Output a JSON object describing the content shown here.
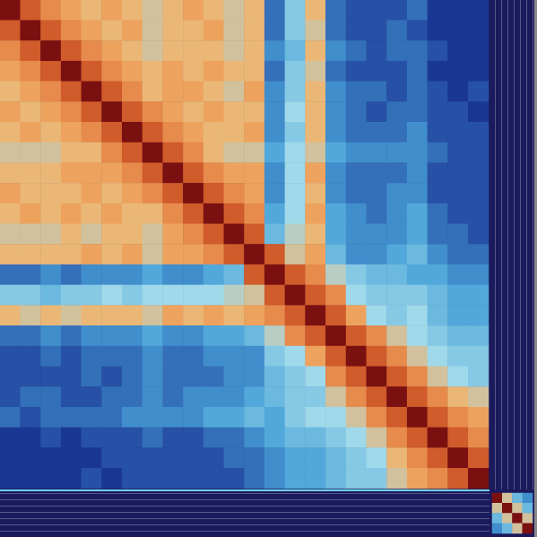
{
  "chart_data": [
    {
      "type": "heatmap",
      "tick_labels": false,
      "color_range": [
        0,
        10
      ],
      "colors": [
        "#0d0d5e",
        "#1d3c9a",
        "#4aa3d8",
        "#9fd9ea",
        "#f2b36a",
        "#d9632e",
        "#7a1010"
      ],
      "matrix": [
        [
          10,
          8.5,
          7.5,
          7,
          6.5,
          7,
          6.5,
          6,
          6.5,
          7,
          6.5,
          6,
          6.5,
          2.5,
          4.5,
          6.5,
          2.5,
          2,
          2,
          2,
          2.5,
          1.5,
          1.5,
          1.5
        ],
        [
          8.5,
          10,
          8.5,
          7.5,
          7,
          6.5,
          7,
          6,
          6.5,
          6.5,
          7,
          6,
          6.5,
          2.5,
          4.5,
          6,
          2.5,
          2,
          2,
          2.5,
          2,
          1.5,
          1.5,
          1.5
        ],
        [
          7.5,
          8.5,
          10,
          8.5,
          7.5,
          7,
          6.5,
          6,
          6.5,
          6.5,
          6.5,
          6,
          6.5,
          3,
          4,
          6.5,
          3,
          2.5,
          2,
          2.5,
          2.5,
          2,
          1.5,
          1.5
        ],
        [
          7,
          7.5,
          8.5,
          10,
          8.5,
          7.5,
          7,
          6.5,
          7,
          6.5,
          7,
          6.5,
          6.5,
          2.5,
          4.5,
          6,
          2.5,
          2,
          2,
          2,
          2.5,
          1.5,
          1.5,
          1.5
        ],
        [
          6.5,
          7,
          7.5,
          8.5,
          10,
          8.5,
          7.5,
          6.5,
          7,
          7,
          6.5,
          6,
          7,
          3,
          4.5,
          6.5,
          3,
          2.5,
          2.5,
          2,
          2.5,
          2,
          1.5,
          2
        ],
        [
          7,
          6.5,
          7,
          7.5,
          8.5,
          10,
          8.5,
          7.5,
          7,
          6.5,
          7,
          6.5,
          6.5,
          3,
          5,
          6.5,
          3,
          2.5,
          2,
          2.5,
          2.5,
          2,
          2,
          1.5
        ],
        [
          6.5,
          7,
          6.5,
          7,
          7.5,
          8.5,
          10,
          8.5,
          7.5,
          7,
          6.5,
          6.5,
          7,
          3,
          4.5,
          6.5,
          3,
          2.5,
          2.5,
          2.5,
          3,
          2,
          2,
          2
        ],
        [
          6,
          6,
          6,
          6.5,
          6.5,
          7.5,
          8.5,
          10,
          8.5,
          7.5,
          6.5,
          6,
          6,
          3.5,
          5,
          6,
          3.5,
          3,
          3,
          3,
          3,
          2.5,
          2,
          2
        ],
        [
          6.5,
          6.5,
          6.5,
          7,
          7,
          7,
          7.5,
          8.5,
          10,
          8.5,
          7.5,
          7,
          7,
          3,
          5,
          7,
          3,
          2.5,
          2.5,
          2.5,
          3,
          2,
          2,
          2
        ],
        [
          7,
          6.5,
          6.5,
          6.5,
          7,
          6.5,
          7,
          7.5,
          8.5,
          10,
          8.5,
          7.5,
          7,
          3,
          5,
          6.5,
          3,
          2.5,
          2.5,
          3,
          3,
          2,
          2,
          2
        ],
        [
          6.5,
          7,
          6.5,
          7,
          6.5,
          7,
          6.5,
          6.5,
          7.5,
          8.5,
          10,
          8.5,
          7.5,
          3.5,
          5,
          7,
          3.5,
          3,
          2.5,
          3,
          3.5,
          2.5,
          2,
          2
        ],
        [
          6,
          6,
          6,
          6.5,
          6,
          6.5,
          6.5,
          6,
          7,
          7.5,
          8.5,
          10,
          8.5,
          4,
          5.5,
          6.5,
          3.5,
          3,
          3,
          3,
          3.5,
          2.5,
          2.5,
          2
        ],
        [
          6.5,
          6.5,
          6.5,
          6.5,
          7,
          6.5,
          7,
          6,
          7,
          7,
          7.5,
          8.5,
          10,
          8.5,
          6,
          7,
          4,
          3,
          3,
          3.5,
          4,
          3,
          2.5,
          2.5
        ],
        [
          2.5,
          2.5,
          3,
          2.5,
          3,
          3,
          3,
          3.5,
          3,
          3,
          3.5,
          4,
          8.5,
          10,
          8.5,
          7.5,
          5.5,
          4.5,
          4,
          4,
          3.5,
          3.5,
          3,
          3
        ],
        [
          4.5,
          4.5,
          4,
          4.5,
          4.5,
          5,
          4.5,
          5,
          5,
          5,
          5,
          5.5,
          6,
          8.5,
          10,
          8.5,
          7.5,
          5,
          4.5,
          4.5,
          4.5,
          4,
          3.5,
          3.5
        ],
        [
          6.5,
          6,
          6.5,
          6,
          6.5,
          6.5,
          6.5,
          6,
          7,
          6.5,
          7,
          6.5,
          7,
          7.5,
          8.5,
          10,
          8.5,
          7,
          5,
          4.5,
          5,
          4,
          3.5,
          3.5
        ],
        [
          2.5,
          2.5,
          3,
          2.5,
          3,
          3,
          3,
          3.5,
          3,
          3,
          3.5,
          3.5,
          4,
          5.5,
          7.5,
          8.5,
          10,
          8.5,
          7.5,
          6,
          5,
          4.5,
          4,
          4
        ],
        [
          2,
          2,
          2.5,
          2,
          2.5,
          2.5,
          2.5,
          3,
          2.5,
          2.5,
          3,
          3,
          3,
          4.5,
          5,
          7,
          8.5,
          10,
          8.5,
          7.5,
          6,
          5,
          4.5,
          4.5
        ],
        [
          2,
          2,
          2,
          2,
          2.5,
          2,
          2.5,
          3,
          2.5,
          2.5,
          2.5,
          3,
          3,
          4,
          4.5,
          5,
          7.5,
          8.5,
          10,
          8.5,
          7.5,
          6,
          5,
          4.5
        ],
        [
          2,
          2.5,
          2.5,
          2,
          2,
          2.5,
          2.5,
          3,
          2.5,
          3,
          3,
          3,
          3.5,
          4,
          4.5,
          4.5,
          6,
          7.5,
          8.5,
          10,
          8.5,
          7.5,
          6.5,
          6
        ],
        [
          2.5,
          2,
          2.5,
          2.5,
          2.5,
          2.5,
          3,
          3,
          3,
          3,
          3.5,
          3.5,
          4,
          3.5,
          4.5,
          5,
          5,
          6,
          7.5,
          8.5,
          10,
          8.5,
          7.5,
          7
        ],
        [
          1.5,
          1.5,
          2,
          1.5,
          2,
          2,
          2,
          2.5,
          2,
          2,
          2.5,
          2.5,
          3,
          3.5,
          4,
          4,
          4.5,
          5,
          6,
          7.5,
          8.5,
          10,
          8.5,
          7.5
        ],
        [
          1.5,
          1.5,
          1.5,
          1.5,
          1.5,
          2,
          2,
          2,
          2,
          2,
          2,
          2.5,
          2.5,
          3,
          3.5,
          3.5,
          4,
          4.5,
          5,
          6.5,
          7.5,
          8.5,
          10,
          8.5
        ],
        [
          1.5,
          1.5,
          1.5,
          1.5,
          2,
          1.5,
          2,
          2,
          2,
          2,
          2,
          2,
          2.5,
          3,
          3.5,
          3.5,
          4,
          4.5,
          4.5,
          6,
          7,
          7.5,
          8.5,
          10
        ]
      ]
    },
    {
      "type": "heatmap",
      "tick_labels": false,
      "color_range": [
        0,
        10
      ],
      "colors": [
        "#0d0d5e",
        "#1d3c9a",
        "#4aa3d8",
        "#9fd9ea",
        "#f2b36a",
        "#d9632e",
        "#7a1010"
      ],
      "matrix": [
        [
          10,
          6,
          4,
          3
        ],
        [
          6,
          10,
          6,
          4
        ],
        [
          4,
          6,
          10,
          6
        ],
        [
          3,
          4,
          6,
          10
        ]
      ]
    }
  ]
}
